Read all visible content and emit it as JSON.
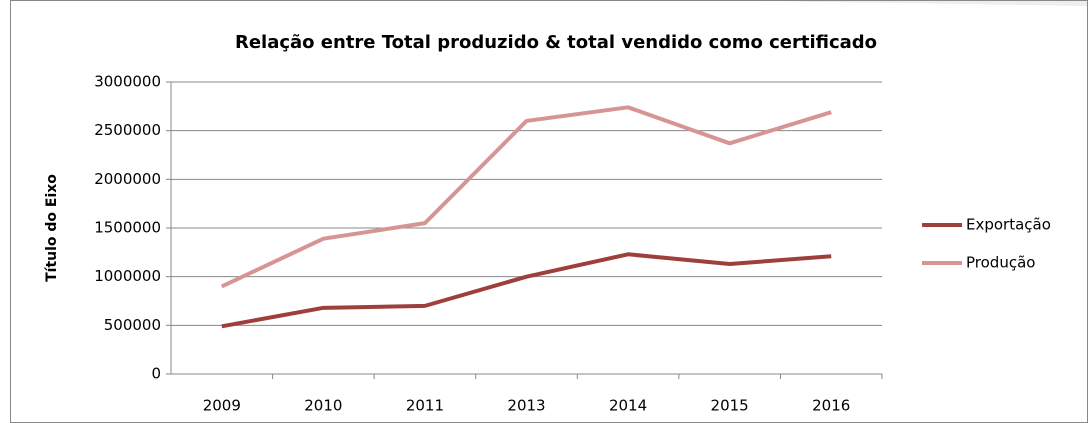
{
  "chart_data": {
    "type": "line",
    "title": "Relação entre Total produzido & total vendido como certificado",
    "y_label": "Título do Eixo",
    "categories": [
      "2009",
      "2010",
      "2011",
      "2013",
      "2014",
      "2015",
      "2016"
    ],
    "series": [
      {
        "name": "Exportação",
        "color": "#9e3f3c",
        "values": [
          490000,
          680000,
          700000,
          1000000,
          1230000,
          1130000,
          1210000
        ]
      },
      {
        "name": "Produção",
        "color": "#d69593",
        "values": [
          900000,
          1390000,
          1550000,
          2600000,
          2740000,
          2370000,
          2690000
        ]
      }
    ],
    "ylim": [
      0,
      3000000
    ],
    "yticks": [
      0,
      500000,
      1000000,
      1500000,
      2000000,
      2500000,
      3000000
    ],
    "grid": true,
    "legend": "right"
  }
}
